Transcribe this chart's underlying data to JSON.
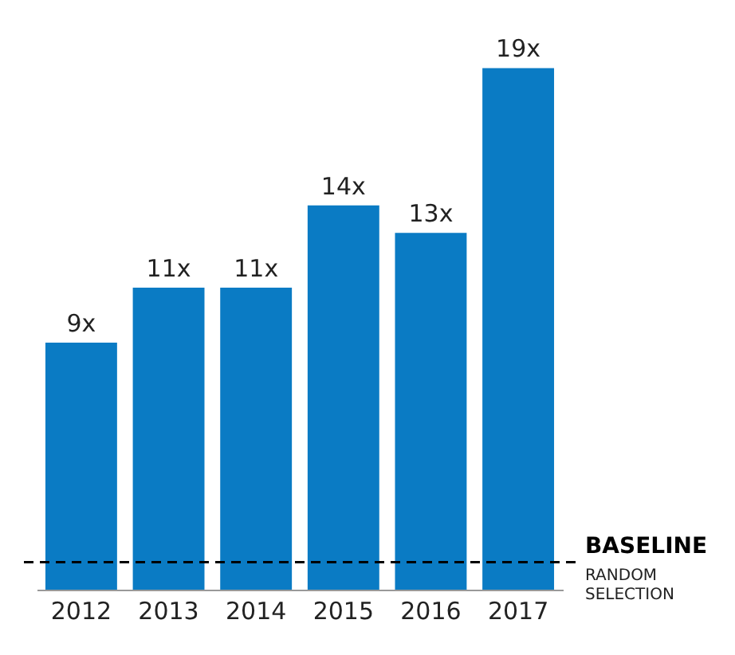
{
  "chart_data": {
    "type": "bar",
    "categories": [
      "2012",
      "2013",
      "2014",
      "2015",
      "2016",
      "2017"
    ],
    "values": [
      9,
      11,
      11,
      14,
      13,
      19
    ],
    "color": "#0a7bc4",
    "value_labels": [
      "9x",
      "11x",
      "11x",
      "14x",
      "13x",
      "19x"
    ],
    "ref_lines": [
      {
        "axis": "y",
        "value": 1,
        "label": "BASELINE",
        "color": "#000000",
        "line_style": "dashed"
      }
    ],
    "annotations": [
      "RANDOM SELECTION"
    ],
    "grid": false
  }
}
